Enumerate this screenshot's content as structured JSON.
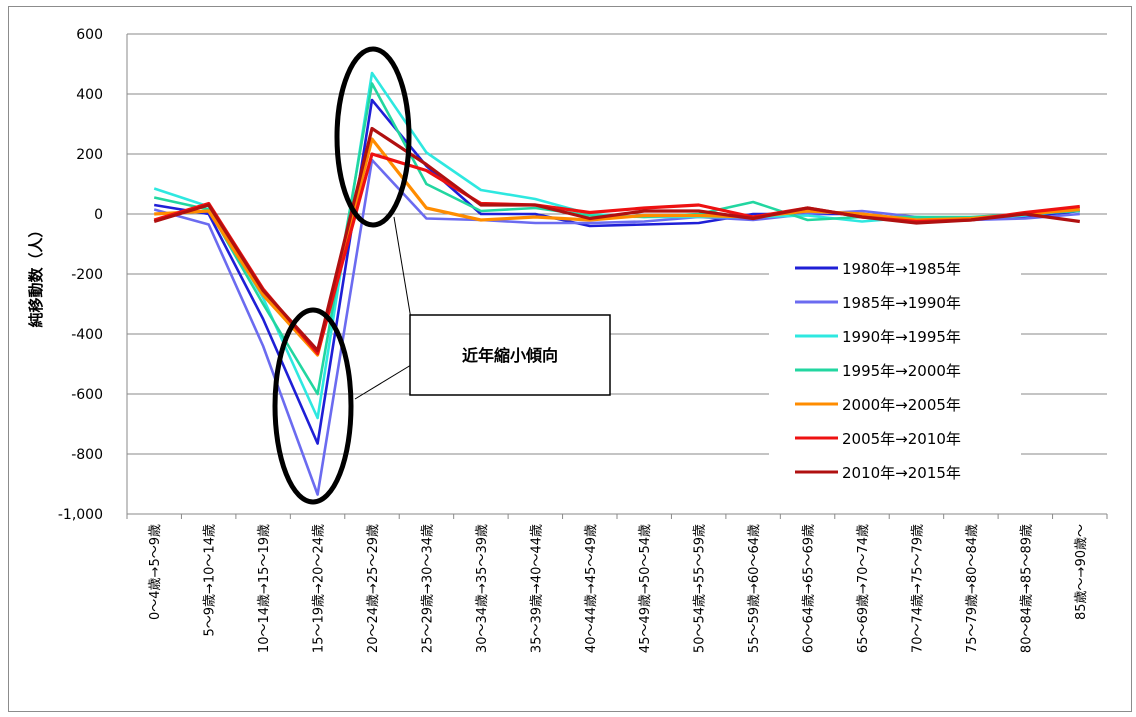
{
  "chart_data": {
    "type": "line",
    "ylabel": "純移動数（人）",
    "ylim": [
      -1000,
      600
    ],
    "yticks": [
      600,
      400,
      200,
      0,
      -200,
      -400,
      -600,
      -800,
      -1000
    ],
    "ytick_labels": [
      "600",
      "400",
      "200",
      "0",
      "-200",
      "-400",
      "-600",
      "-800",
      "-1,000"
    ],
    "grid": true,
    "legend_position": "right",
    "categories": [
      "0～4歳→5～9歳",
      "5～9歳→10～14歳",
      "10～14歳→15～19歳",
      "15～19歳→20～24歳",
      "20～24歳→25～29歳",
      "25～29歳→30～34歳",
      "30～34歳→35～39歳",
      "35～39歳→40～44歳",
      "40～44歳→45～49歳",
      "45～49歳→50～54歳",
      "50～54歳→55～59歳",
      "55～59歳→60～64歳",
      "60～64歳→65～69歳",
      "65～69歳→70～74歳",
      "70～74歳→75～79歳",
      "75～79歳→80～84歳",
      "80～84歳→85～89歳",
      "85歳～→90歳～"
    ],
    "series": [
      {
        "name": "1980年→1985年",
        "color": "#1f1fd6",
        "values": [
          30,
          0,
          -350,
          -765,
          380,
          160,
          0,
          0,
          -40,
          -35,
          -30,
          0,
          0,
          0,
          -20,
          -20,
          -10,
          10
        ]
      },
      {
        "name": "1985年→1990年",
        "color": "#6b6bf0",
        "values": [
          15,
          -35,
          -440,
          -935,
          180,
          -15,
          -20,
          -30,
          -30,
          -25,
          -10,
          -20,
          0,
          10,
          -10,
          -20,
          -15,
          0
        ]
      },
      {
        "name": "1990年→1995年",
        "color": "#2ee8e0",
        "values": [
          85,
          25,
          -280,
          -680,
          470,
          205,
          80,
          50,
          0,
          -10,
          -10,
          -10,
          -5,
          -25,
          -10,
          -15,
          -5,
          15
        ]
      },
      {
        "name": "1995年→2000年",
        "color": "#22d6a0",
        "values": [
          55,
          15,
          -300,
          -600,
          435,
          100,
          10,
          20,
          -5,
          -10,
          0,
          40,
          -20,
          -10,
          -10,
          -10,
          0,
          10
        ]
      },
      {
        "name": "2000年→2005年",
        "color": "#ff8c00",
        "values": [
          0,
          10,
          -270,
          -470,
          250,
          20,
          -20,
          -10,
          -20,
          -5,
          -5,
          -10,
          10,
          0,
          -20,
          -15,
          0,
          15
        ]
      },
      {
        "name": "2005年→2010年",
        "color": "#ee1111",
        "values": [
          -20,
          35,
          -250,
          -465,
          200,
          145,
          35,
          30,
          5,
          20,
          30,
          -10,
          20,
          -10,
          -25,
          -20,
          5,
          25
        ]
      },
      {
        "name": "2010年→2015年",
        "color": "#b01010",
        "values": [
          -25,
          30,
          -255,
          -455,
          285,
          165,
          30,
          30,
          -15,
          10,
          10,
          -15,
          20,
          -10,
          -30,
          -20,
          0,
          -25
        ]
      }
    ],
    "annotation": {
      "text": "近年縮小傾向"
    }
  }
}
